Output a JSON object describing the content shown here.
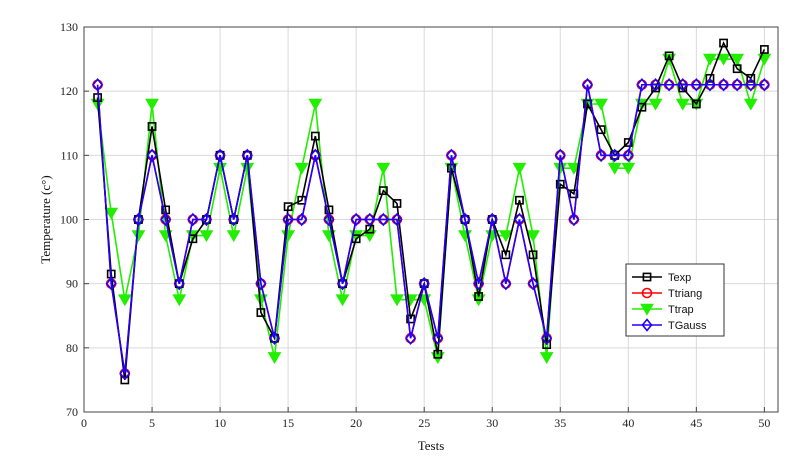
{
  "chart_data": {
    "type": "line",
    "xlabel": "Tests",
    "ylabel": "Temperature (c°)",
    "xlim": [
      0,
      51
    ],
    "ylim": [
      70,
      130
    ],
    "xticks": [
      0,
      5,
      10,
      15,
      20,
      25,
      30,
      35,
      40,
      45,
      50
    ],
    "yticks": [
      70,
      80,
      90,
      100,
      110,
      120,
      130
    ],
    "grid": true,
    "legend_position": "right-lower",
    "x": [
      1,
      2,
      3,
      4,
      5,
      6,
      7,
      8,
      9,
      10,
      11,
      12,
      13,
      14,
      15,
      16,
      17,
      18,
      19,
      20,
      21,
      22,
      23,
      24,
      25,
      26,
      27,
      28,
      29,
      30,
      31,
      32,
      33,
      34,
      35,
      36,
      37,
      38,
      39,
      40,
      41,
      42,
      43,
      44,
      45,
      46,
      47,
      48,
      49,
      50
    ],
    "series": [
      {
        "name": "Texp",
        "color": "#000000",
        "marker": "square",
        "values": [
          119,
          91.5,
          75,
          100,
          114.5,
          101.5,
          90,
          97,
          100,
          110,
          100,
          110,
          85.5,
          81.5,
          102,
          103,
          113,
          101.5,
          90,
          97,
          98.5,
          104.5,
          102.5,
          84.5,
          90,
          79,
          108,
          100,
          88,
          100,
          94.5,
          103,
          94.5,
          80.5,
          105.5,
          104,
          118,
          114,
          110,
          112,
          117.5,
          120.5,
          125.5,
          120.5,
          118,
          122,
          127.5,
          123.5,
          122,
          126.5
        ]
      },
      {
        "name": "Ttriang",
        "color": "#ff0000",
        "marker": "circle",
        "values": [
          121,
          90,
          76,
          100,
          110,
          100,
          90,
          100,
          100,
          110,
          100,
          110,
          90,
          81.5,
          100,
          100,
          110,
          100,
          90,
          100,
          100,
          100,
          100,
          81.5,
          90,
          81.5,
          110,
          100,
          90,
          100,
          90,
          100,
          90,
          81.5,
          110,
          100,
          121,
          110,
          110,
          110,
          121,
          121,
          121,
          121,
          121,
          121,
          121,
          121,
          121,
          121
        ]
      },
      {
        "name": "Ttrap",
        "color": "#22ee00",
        "marker": "triangle-down",
        "values": [
          118,
          101,
          87.5,
          97.5,
          118,
          97.5,
          87.5,
          97.5,
          97.5,
          108,
          97.5,
          108,
          87.5,
          78.5,
          97.5,
          108,
          118,
          97.5,
          87.5,
          97.5,
          97.5,
          108,
          87.5,
          87.5,
          87.5,
          78.5,
          108,
          97.5,
          87.5,
          97.5,
          97.5,
          108,
          97.5,
          78.5,
          108,
          108,
          118,
          118,
          108,
          108,
          118,
          118,
          125,
          118,
          118,
          125,
          125,
          125,
          118,
          125
        ]
      },
      {
        "name": "TGauss",
        "color": "#2200ff",
        "marker": "diamond",
        "values": [
          121,
          90,
          76,
          100,
          110,
          100,
          90,
          100,
          100,
          110,
          100,
          110,
          90,
          81.5,
          100,
          100,
          110,
          100,
          90,
          100,
          100,
          100,
          100,
          81.5,
          90,
          81.5,
          110,
          100,
          90,
          100,
          90,
          100,
          90,
          81.5,
          110,
          100,
          121,
          110,
          110,
          110,
          121,
          121,
          121,
          121,
          121,
          121,
          121,
          121,
          121,
          121
        ]
      }
    ]
  }
}
